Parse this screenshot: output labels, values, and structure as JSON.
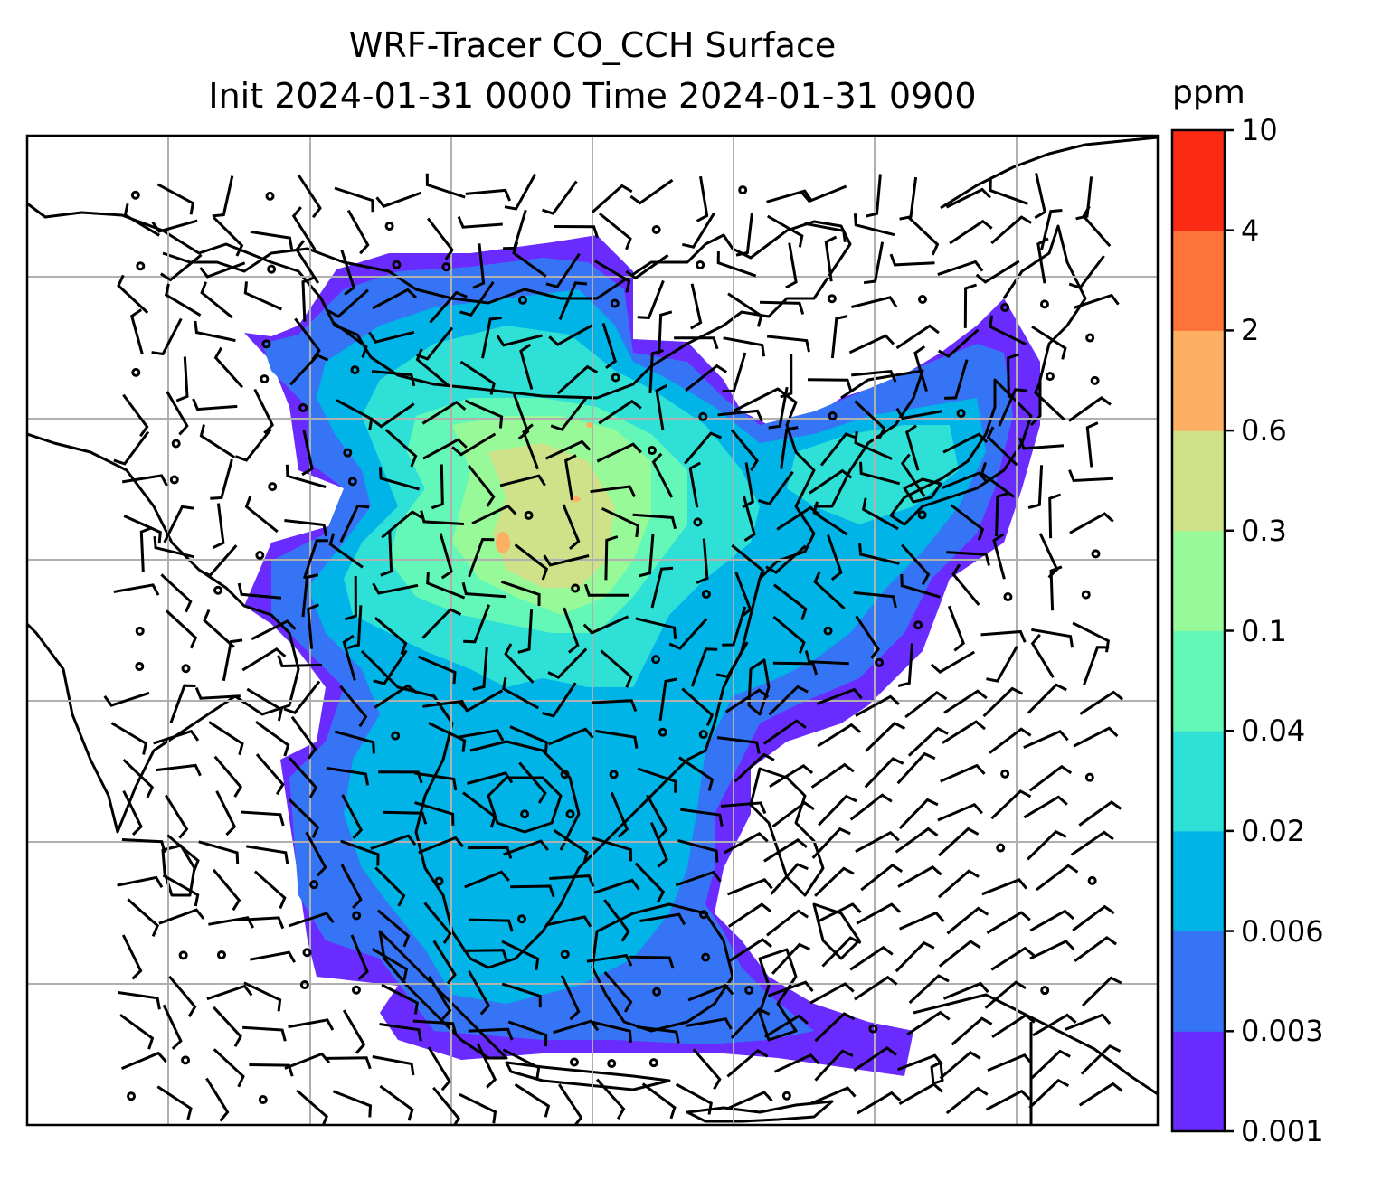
{
  "title_line1": "WRF-Tracer CO_CCH Surface",
  "title_line2": "Init 2024-01-31 0000 Time 2024-01-31 0900",
  "colorbar": {
    "label": "ppm",
    "levels": [
      "0.001",
      "0.003",
      "0.006",
      "0.02",
      "0.04",
      "0.1",
      "0.3",
      "0.6",
      "2",
      "4",
      "10"
    ],
    "colors": [
      "#6a2bff",
      "#3575f5",
      "#00b4e8",
      "#2ee0d6",
      "#63f7b8",
      "#98f998",
      "#cfe289",
      "#fdb063",
      "#fd7338",
      "#fb2a12"
    ]
  },
  "chart_data": {
    "type": "heatmap",
    "title": "WRF-Tracer CO_CCH Surface\nInit 2024-01-31 0000 Time 2024-01-31 0900",
    "colorbar_label": "ppm",
    "levels": [
      0.001,
      0.003,
      0.006,
      0.02,
      0.04,
      0.1,
      0.3,
      0.6,
      2,
      4,
      10
    ],
    "grid": true,
    "overlays": [
      "coastlines",
      "wind barbs"
    ]
  }
}
